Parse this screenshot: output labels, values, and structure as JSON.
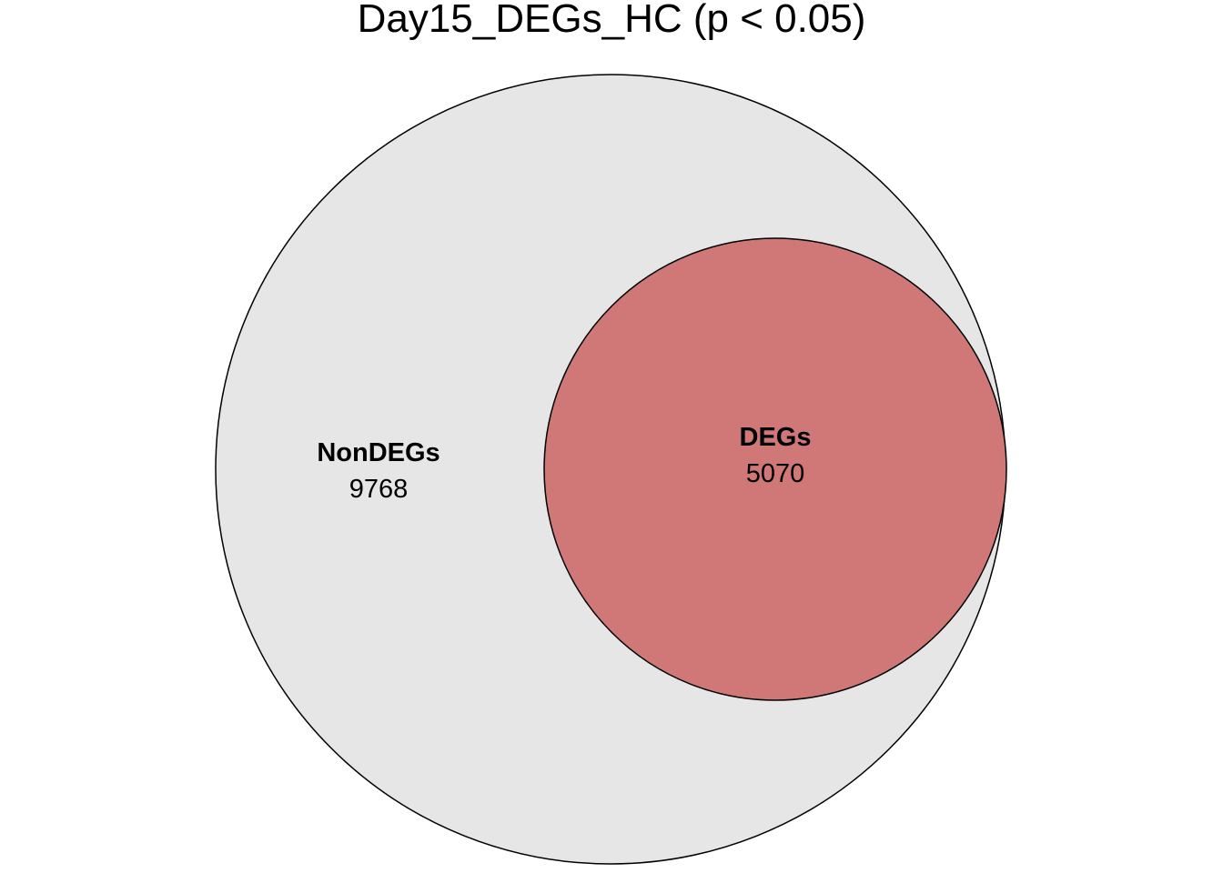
{
  "chart_data": {
    "type": "venn",
    "title": "Day15_DEGs_HC (p < 0.05)",
    "sets": [
      {
        "name": "NonDEGs",
        "count": 9768,
        "color": "#E6E6E6"
      },
      {
        "name": "DEGs",
        "count": 5070,
        "color": "#CF7877"
      }
    ],
    "relationship": "DEGs nested inside NonDEGs circle"
  }
}
